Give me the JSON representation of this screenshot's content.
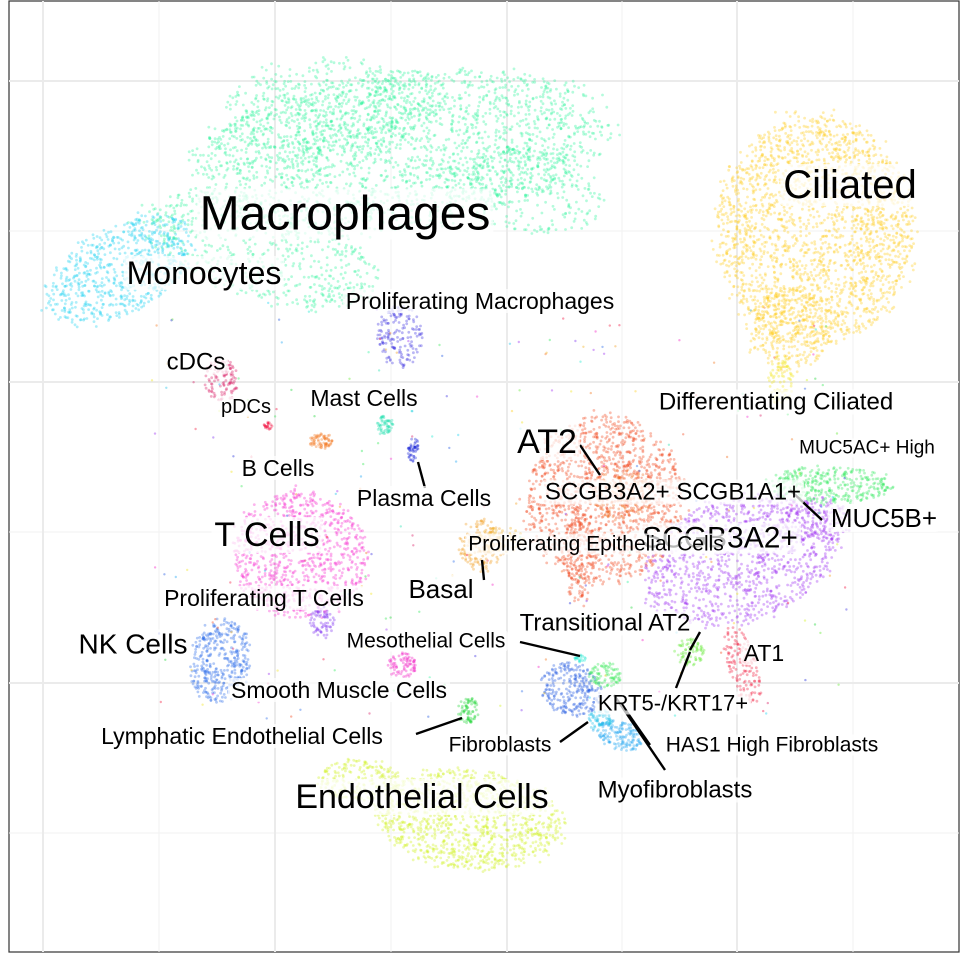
{
  "chart_data": {
    "type": "scatter",
    "title": "",
    "xlabel": "",
    "ylabel": "",
    "grid": true,
    "legend": "none",
    "clusters": [
      {
        "name": "Macrophages",
        "color": "#2af39a",
        "label_size": "large"
      },
      {
        "name": "Monocytes",
        "color": "#1ad2f2",
        "label_size": "medium"
      },
      {
        "name": "Proliferating Macrophages",
        "color": "#3a2de0",
        "label_size": "small"
      },
      {
        "name": "cDCs",
        "color": "#d8145e",
        "label_size": "small"
      },
      {
        "name": "pDCs",
        "color": "#f20a3a",
        "label_size": "xsmall"
      },
      {
        "name": "Mast Cells",
        "color": "#22e0b0",
        "label_size": "small"
      },
      {
        "name": "B Cells",
        "color": "#f3761c",
        "label_size": "small"
      },
      {
        "name": "Plasma Cells",
        "color": "#1a25d8",
        "label_size": "small"
      },
      {
        "name": "T Cells",
        "color": "#f52acf",
        "label_size": "large"
      },
      {
        "name": "Proliferating T Cells",
        "color": "#7a2cf0",
        "label_size": "small"
      },
      {
        "name": "NK Cells",
        "color": "#2466e8",
        "label_size": "medium"
      },
      {
        "name": "Smooth Muscle Cells",
        "color": "#f21ac2",
        "label_size": "small"
      },
      {
        "name": "Lymphatic Endothelial Cells",
        "color": "#1ad431",
        "label_size": "small"
      },
      {
        "name": "Endothelial Cells",
        "color": "#cff21a",
        "label_size": "large"
      },
      {
        "name": "Fibroblasts",
        "color": "#1a52e0",
        "label_size": "small"
      },
      {
        "name": "HAS1 High Fibroblasts",
        "color": "#1aa3f2",
        "label_size": "small"
      },
      {
        "name": "Myofibroblasts",
        "color": "#1ac0e8",
        "label_size": "small"
      },
      {
        "name": "Mesothelial Cells",
        "color": "#1ae8d0",
        "label_size": "small"
      },
      {
        "name": "KRT5-/KRT17+",
        "color": "#34e855",
        "label_size": "small"
      },
      {
        "name": "Transitional AT2",
        "color": "#5ce82a",
        "label_size": "small"
      },
      {
        "name": "AT1",
        "color": "#f21a3c",
        "label_size": "small"
      },
      {
        "name": "AT2",
        "color": "#f2441a",
        "label_size": "large"
      },
      {
        "name": "SCGB3A2+ SCGB1A1+",
        "color": "#f26a1a",
        "label_size": "small"
      },
      {
        "name": "SCGB3A2+",
        "color": "#9a2cf0",
        "label_size": "medium"
      },
      {
        "name": "MUC5B+",
        "color": "#a02ef2",
        "label_size": "medium"
      },
      {
        "name": "MUC5AC+ High",
        "color": "#2ae858",
        "label_size": "xsmall"
      },
      {
        "name": "Differentiating Ciliated",
        "color": "#f0e41a",
        "label_size": "small"
      },
      {
        "name": "Ciliated",
        "color": "#ffcc1a",
        "label_size": "large"
      },
      {
        "name": "Basal",
        "color": "#f29a1a",
        "label_size": "medium"
      },
      {
        "name": "Proliferating Epithelial Cells",
        "color": "#f2b01a",
        "label_size": "small"
      }
    ]
  }
}
